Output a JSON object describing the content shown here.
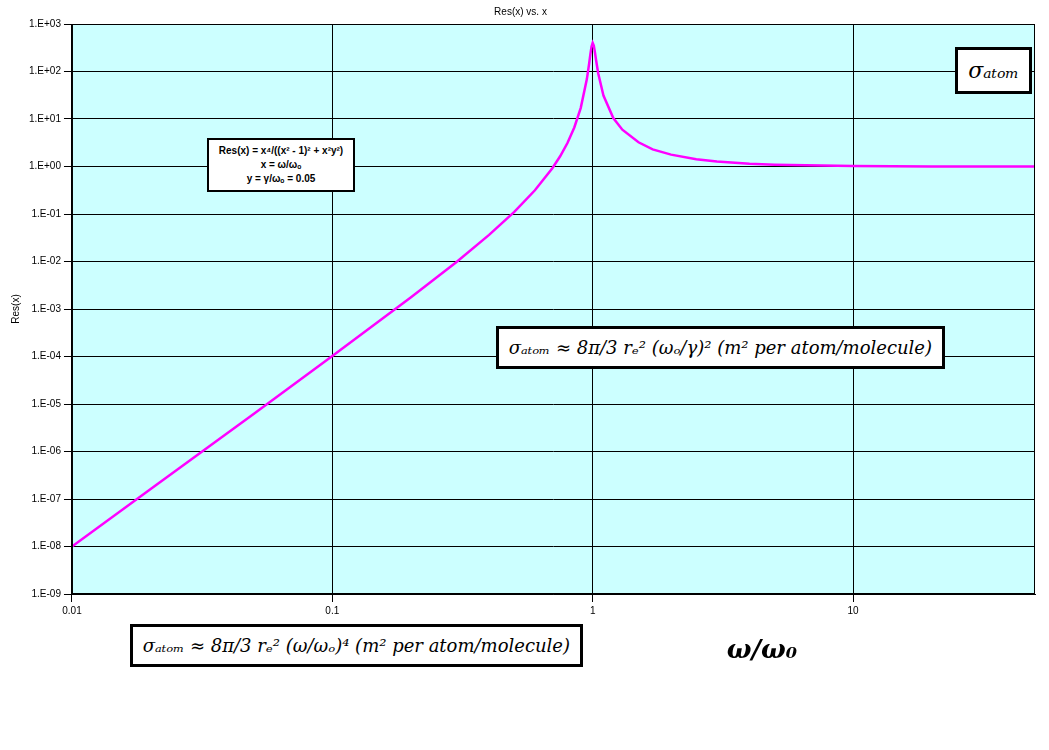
{
  "chart_data": {
    "type": "line",
    "title": "Res(x) vs. x",
    "x_label": "ω/ω₀",
    "y_label": "Res(x)",
    "x": [
      0.01,
      0.02,
      0.05,
      0.1,
      0.2,
      0.3,
      0.4,
      0.5,
      0.6,
      0.7,
      0.75,
      0.8,
      0.85,
      0.9,
      0.95,
      0.97,
      0.98,
      0.99,
      1,
      1.01,
      1.02,
      1.03,
      1.05,
      1.1,
      1.2,
      1.3,
      1.5,
      1.7,
      2,
      2.5,
      3,
      4,
      5,
      10,
      20,
      50
    ],
    "values": [
      1e-08,
      1.6e-07,
      6.26e-06,
      0.000102,
      0.00174,
      0.00978,
      0.0363,
      0.111,
      0.316,
      0.919,
      1.64,
      3.12,
      6.62,
      17.2,
      69.2,
      151,
      232,
      337,
      400,
      352,
      256,
      177,
      91.7,
      31.1,
      10.5,
      5.95,
      3.23,
      2.29,
      1.78,
      1.42,
      1.27,
      1.14,
      1.09,
      1.02,
      1.0,
      1.0
    ],
    "color": "#ff00ff",
    "xlim": [
      0.01,
      50
    ],
    "ylim": [
      1e-09,
      1000
    ],
    "xticks": [
      0.01,
      0.1,
      1,
      10
    ],
    "yticks": [
      {
        "value": 1e-09,
        "label": "1.E-09"
      },
      {
        "value": 1e-08,
        "label": "1.E-08"
      },
      {
        "value": 1e-07,
        "label": "1.E-07"
      },
      {
        "value": 1e-06,
        "label": "1.E-06"
      },
      {
        "value": 1e-05,
        "label": "1.E-05"
      },
      {
        "value": 0.0001,
        "label": "1.E-04"
      },
      {
        "value": 0.001,
        "label": "1.E-03"
      },
      {
        "value": 0.01,
        "label": "1.E-02"
      },
      {
        "value": 0.1,
        "label": "1.E-01"
      },
      {
        "value": 1,
        "label": "1.E+00"
      },
      {
        "value": 10,
        "label": "1.E+01"
      },
      {
        "value": 100,
        "label": "1.E+02"
      },
      {
        "value": 1000,
        "label": "1.E+03"
      }
    ],
    "log": true,
    "grid": true,
    "annotations": [
      [
        "Res(x) = x⁴/((x² - 1)² + x²y²)",
        "x = ω/ωₒ",
        "y = γ/ωₒ = 0.05"
      ],
      [
        "σₐₜₒₘ ≈ 8π/3 rₑ² (ωₒ/γ)² (m² per atom/molecule)"
      ],
      [
        "σₐₜₒₘ ≈ 8π/3 rₑ² (ω/ωₒ)⁴ (m² per atom/molecule)"
      ],
      [
        "σₐₜₒₘ"
      ]
    ]
  }
}
